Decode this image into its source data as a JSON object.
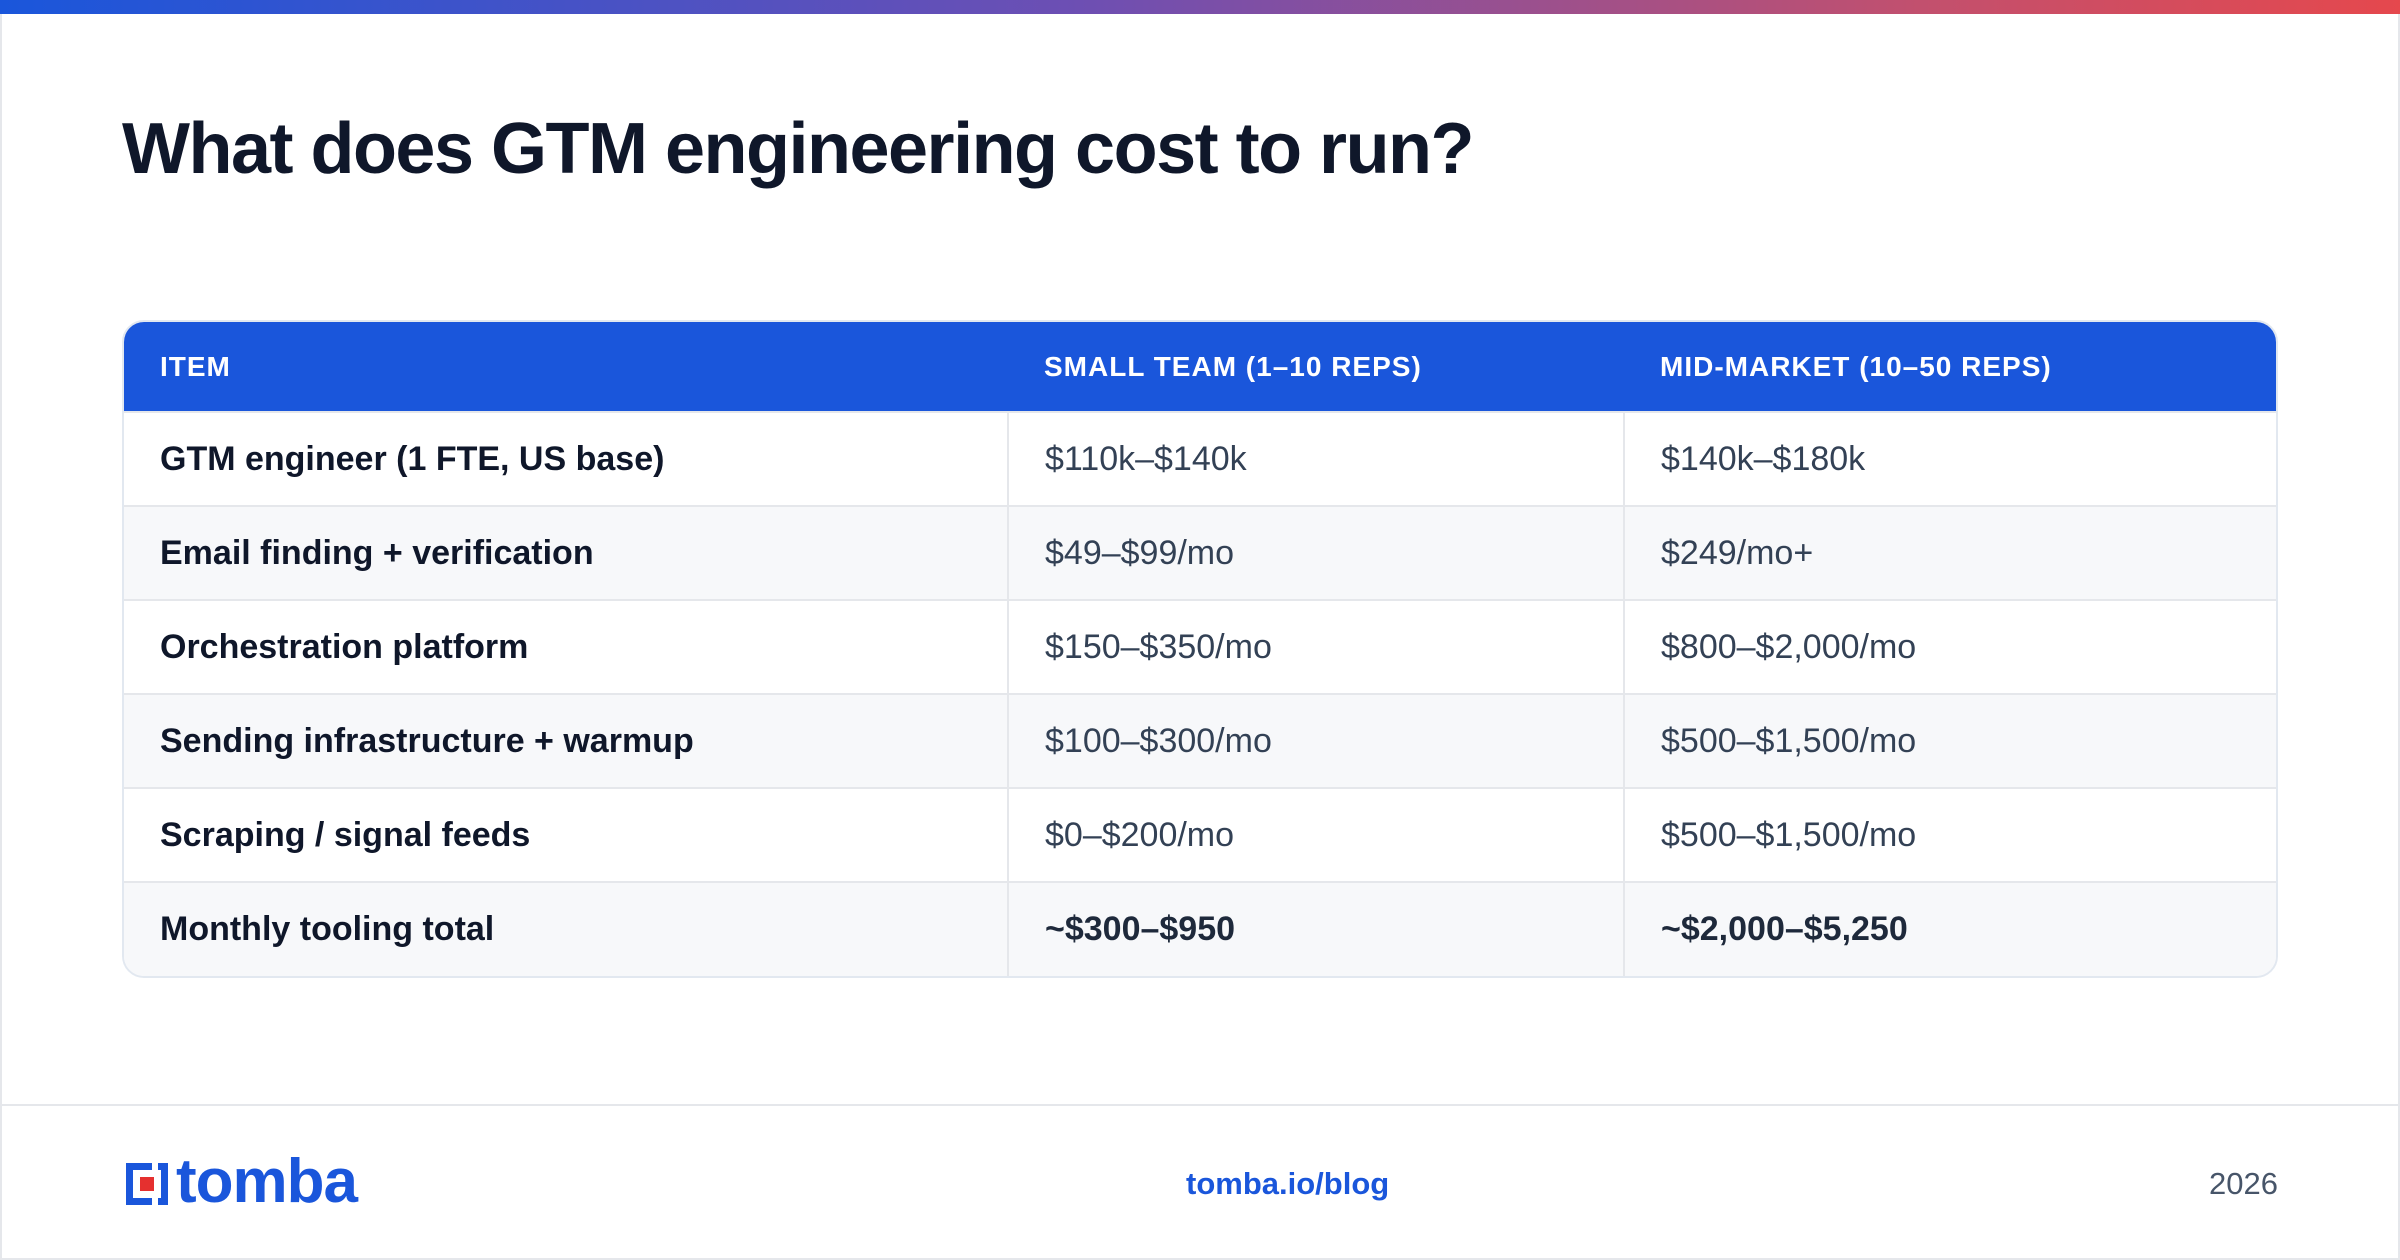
{
  "title": "What does GTM engineering cost to run?",
  "table": {
    "headers": [
      "ITEM",
      "SMALL TEAM (1–10 REPS)",
      "MID-MARKET (10–50 REPS)"
    ],
    "rows": [
      [
        "GTM engineer (1 FTE, US base)",
        "$110k–$140k",
        "$140k–$180k"
      ],
      [
        "Email finding + verification",
        "$49–$99/mo",
        "$249/mo+"
      ],
      [
        "Orchestration platform",
        "$150–$350/mo",
        "$800–$2,000/mo"
      ],
      [
        "Sending infrastructure + warmup",
        "$100–$300/mo",
        "$500–$1,500/mo"
      ],
      [
        "Scraping / signal feeds",
        "$0–$200/mo",
        "$500–$1,500/mo"
      ],
      [
        "Monthly tooling total",
        "~$300–$950",
        "~$2,000–$5,250"
      ]
    ]
  },
  "footer": {
    "logo_text": "tomba",
    "link": "tomba.io/blog",
    "year": "2026"
  },
  "colors": {
    "accent": "#1a56db",
    "logo_red": "#e5302f",
    "header_text": "#ffffff",
    "title_text": "#0f172a"
  },
  "icons": {
    "logo_mark": "tomba-bracket-logo-icon"
  }
}
